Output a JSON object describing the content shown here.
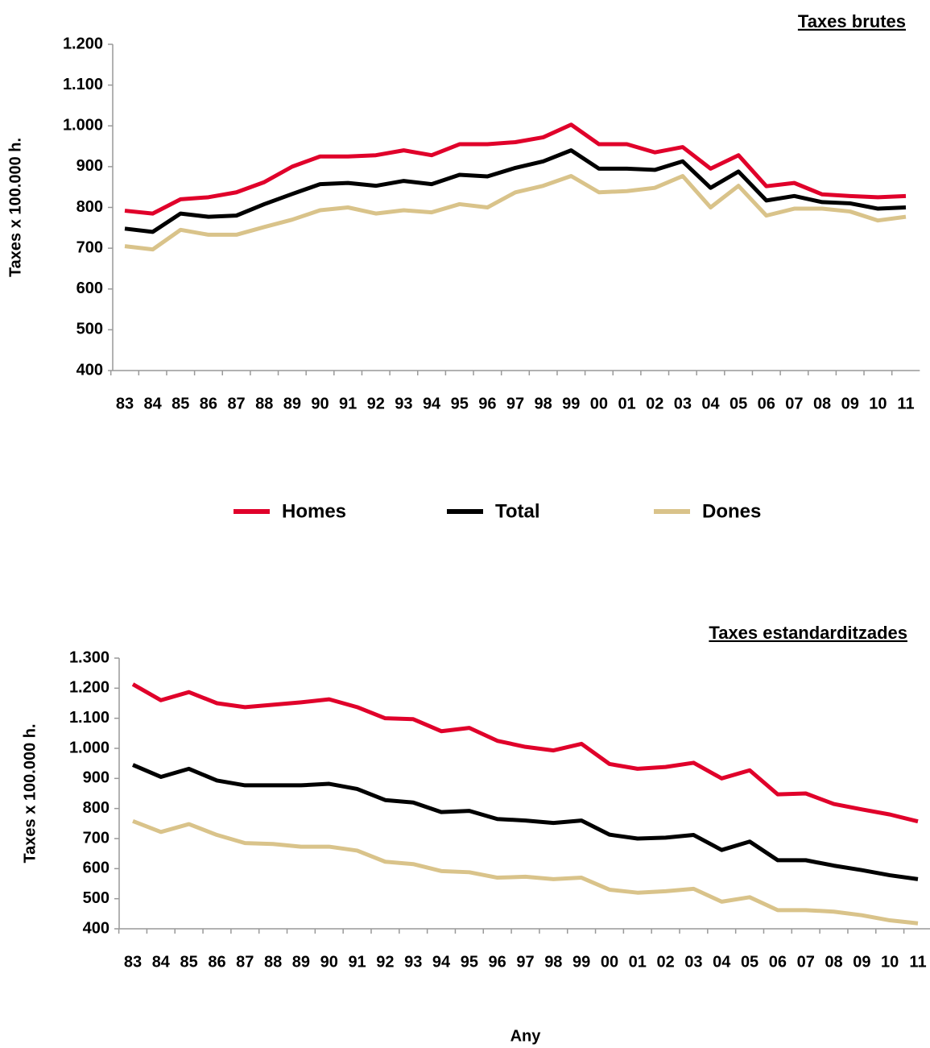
{
  "chart_data": [
    {
      "type": "line",
      "title": "Taxes brutes",
      "y_label": "Taxes x 100.000 h.",
      "categories": [
        "83",
        "84",
        "85",
        "86",
        "87",
        "88",
        "89",
        "90",
        "91",
        "92",
        "93",
        "94",
        "95",
        "96",
        "97",
        "98",
        "99",
        "00",
        "01",
        "02",
        "03",
        "04",
        "05",
        "06",
        "07",
        "08",
        "09",
        "10",
        "11"
      ],
      "ylim": [
        400,
        1200
      ],
      "yticks": [
        400,
        500,
        600,
        700,
        800,
        900,
        {
          "value": 1000,
          "label": "1.000"
        },
        {
          "value": 1100,
          "label": "1.100"
        },
        {
          "value": 1200,
          "label": "1.200"
        }
      ],
      "series": [
        {
          "name": "Homes",
          "color": "#e0002a",
          "values": [
            792,
            785,
            820,
            825,
            837,
            862,
            900,
            925,
            925,
            928,
            940,
            928,
            955,
            955,
            960,
            972,
            1003,
            955,
            955,
            935,
            948,
            895,
            928,
            852,
            860,
            832,
            828,
            825,
            828
          ]
        },
        {
          "name": "Total",
          "color": "#000000",
          "values": [
            748,
            740,
            785,
            777,
            780,
            808,
            833,
            857,
            860,
            853,
            865,
            857,
            880,
            876,
            897,
            913,
            940,
            895,
            895,
            892,
            913,
            848,
            888,
            817,
            828,
            813,
            810,
            797,
            800
          ]
        },
        {
          "name": "Dones",
          "color": "#d9c38a",
          "values": [
            705,
            697,
            745,
            733,
            733,
            752,
            770,
            793,
            800,
            785,
            793,
            788,
            808,
            800,
            837,
            853,
            877,
            837,
            840,
            848,
            877,
            800,
            853,
            780,
            797,
            797,
            790,
            768,
            777
          ]
        }
      ]
    },
    {
      "type": "line",
      "title": "Taxes estandarditzades",
      "y_label": "Taxes x 100.000 h.",
      "x_label": "Any",
      "categories": [
        "83",
        "84",
        "85",
        "86",
        "87",
        "88",
        "89",
        "90",
        "91",
        "92",
        "93",
        "94",
        "95",
        "96",
        "97",
        "98",
        "99",
        "00",
        "01",
        "02",
        "03",
        "04",
        "05",
        "06",
        "07",
        "08",
        "09",
        "10",
        "11"
      ],
      "ylim": [
        400,
        1300
      ],
      "yticks": [
        400,
        500,
        600,
        700,
        800,
        900,
        {
          "value": 1000,
          "label": "1.000"
        },
        {
          "value": 1100,
          "label": "1.100"
        },
        {
          "value": 1200,
          "label": "1.200"
        },
        {
          "value": 1300,
          "label": "1.300"
        }
      ],
      "series": [
        {
          "color": "#e0002a",
          "values": [
            1213,
            1160,
            1187,
            1150,
            1137,
            1145,
            1153,
            1163,
            1137,
            1100,
            1097,
            1057,
            1068,
            1025,
            1005,
            993,
            1015,
            948,
            932,
            938,
            952,
            900,
            927,
            847,
            850,
            815,
            797,
            780,
            757
          ]
        },
        {
          "color": "#000000",
          "values": [
            945,
            905,
            932,
            893,
            877,
            877,
            877,
            882,
            865,
            828,
            820,
            788,
            792,
            765,
            760,
            752,
            760,
            713,
            700,
            703,
            712,
            662,
            690,
            628,
            628,
            610,
            595,
            578,
            565
          ]
        },
        {
          "color": "#d9c38a",
          "values": [
            758,
            722,
            748,
            712,
            685,
            682,
            673,
            673,
            660,
            623,
            615,
            592,
            588,
            570,
            573,
            565,
            570,
            530,
            520,
            525,
            533,
            490,
            505,
            462,
            462,
            457,
            445,
            428,
            418
          ]
        }
      ]
    }
  ]
}
